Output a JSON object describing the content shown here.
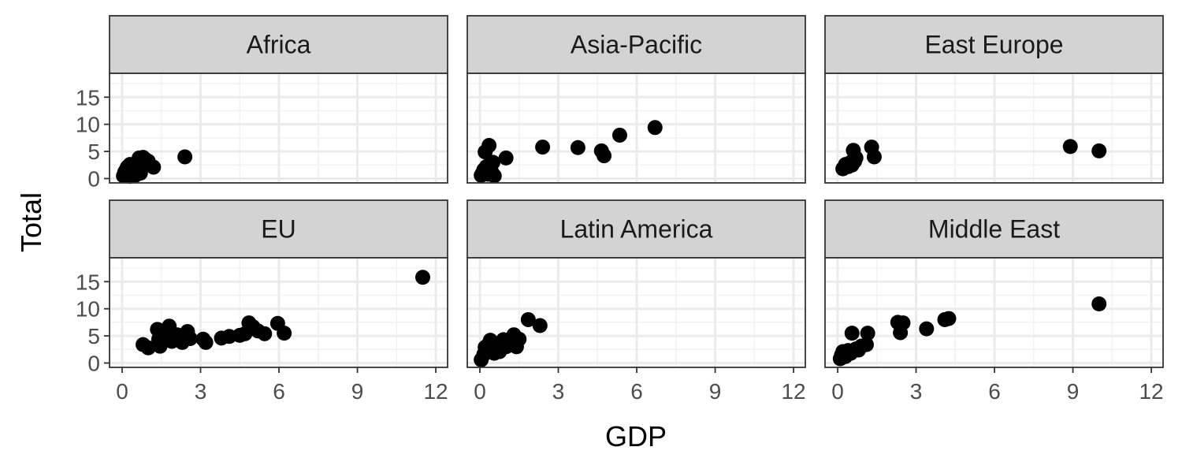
{
  "chart_data": {
    "type": "scatter",
    "xlabel": "GDP",
    "ylabel": "Total",
    "xlim": [
      0,
      12
    ],
    "ylim": [
      0,
      15
    ],
    "x_ticks": [
      0,
      3,
      6,
      9,
      12
    ],
    "y_ticks": [
      0,
      5,
      10,
      15
    ],
    "grid": true,
    "point_color": "#000000",
    "strip_color": "#d3d3d3",
    "facets": [
      {
        "name": "Africa",
        "points": [
          {
            "x": 0.05,
            "y": 0.5
          },
          {
            "x": 0.1,
            "y": 1.2
          },
          {
            "x": 0.12,
            "y": 0.8
          },
          {
            "x": 0.15,
            "y": 1.6
          },
          {
            "x": 0.2,
            "y": 2.1
          },
          {
            "x": 0.25,
            "y": 0.6
          },
          {
            "x": 0.3,
            "y": 2.6
          },
          {
            "x": 0.35,
            "y": 1.3
          },
          {
            "x": 0.4,
            "y": 0.9
          },
          {
            "x": 0.45,
            "y": 2.0
          },
          {
            "x": 0.5,
            "y": 1.6
          },
          {
            "x": 0.55,
            "y": 2.3
          },
          {
            "x": 0.6,
            "y": 3.2
          },
          {
            "x": 0.65,
            "y": 3.8
          },
          {
            "x": 0.7,
            "y": 1.0
          },
          {
            "x": 0.75,
            "y": 2.8
          },
          {
            "x": 0.8,
            "y": 3.9
          },
          {
            "x": 0.9,
            "y": 3.5
          },
          {
            "x": 1.0,
            "y": 3.2
          },
          {
            "x": 1.2,
            "y": 2.1
          },
          {
            "x": 2.4,
            "y": 4.0
          },
          {
            "x": 0.3,
            "y": 0.4
          },
          {
            "x": 0.5,
            "y": 0.6
          }
        ]
      },
      {
        "name": "Asia-Pacific",
        "points": [
          {
            "x": 0.05,
            "y": 0.6
          },
          {
            "x": 0.1,
            "y": 1.0
          },
          {
            "x": 0.15,
            "y": 1.6
          },
          {
            "x": 0.2,
            "y": 4.9
          },
          {
            "x": 0.25,
            "y": 2.2
          },
          {
            "x": 0.3,
            "y": 0.8
          },
          {
            "x": 0.35,
            "y": 6.1
          },
          {
            "x": 0.4,
            "y": 2.6
          },
          {
            "x": 0.45,
            "y": 1.2
          },
          {
            "x": 0.5,
            "y": 3.0
          },
          {
            "x": 0.55,
            "y": 0.5
          },
          {
            "x": 1.0,
            "y": 3.8
          },
          {
            "x": 2.4,
            "y": 5.8
          },
          {
            "x": 3.75,
            "y": 5.7
          },
          {
            "x": 4.65,
            "y": 5.1
          },
          {
            "x": 4.75,
            "y": 4.2
          },
          {
            "x": 5.35,
            "y": 8.0
          },
          {
            "x": 6.7,
            "y": 9.4
          }
        ]
      },
      {
        "name": "East Europe",
        "points": [
          {
            "x": 0.2,
            "y": 1.8
          },
          {
            "x": 0.3,
            "y": 2.6
          },
          {
            "x": 0.4,
            "y": 2.2
          },
          {
            "x": 0.5,
            "y": 3.0
          },
          {
            "x": 0.55,
            "y": 2.5
          },
          {
            "x": 0.6,
            "y": 5.2
          },
          {
            "x": 0.65,
            "y": 3.2
          },
          {
            "x": 0.7,
            "y": 3.8
          },
          {
            "x": 1.3,
            "y": 5.8
          },
          {
            "x": 1.4,
            "y": 4.0
          },
          {
            "x": 8.9,
            "y": 5.9
          },
          {
            "x": 10.0,
            "y": 5.1
          }
        ]
      },
      {
        "name": "EU",
        "points": [
          {
            "x": 0.8,
            "y": 3.4
          },
          {
            "x": 1.0,
            "y": 2.8
          },
          {
            "x": 1.35,
            "y": 6.2
          },
          {
            "x": 1.4,
            "y": 4.4
          },
          {
            "x": 1.45,
            "y": 3.1
          },
          {
            "x": 1.7,
            "y": 5.1
          },
          {
            "x": 1.8,
            "y": 6.8
          },
          {
            "x": 1.9,
            "y": 4.0
          },
          {
            "x": 2.1,
            "y": 5.2
          },
          {
            "x": 2.3,
            "y": 3.8
          },
          {
            "x": 2.4,
            "y": 5.0
          },
          {
            "x": 2.5,
            "y": 5.8
          },
          {
            "x": 2.6,
            "y": 4.5
          },
          {
            "x": 3.1,
            "y": 4.4
          },
          {
            "x": 3.2,
            "y": 3.8
          },
          {
            "x": 3.8,
            "y": 4.6
          },
          {
            "x": 4.1,
            "y": 4.9
          },
          {
            "x": 4.5,
            "y": 5.1
          },
          {
            "x": 4.7,
            "y": 5.4
          },
          {
            "x": 4.85,
            "y": 7.4
          },
          {
            "x": 5.0,
            "y": 6.7
          },
          {
            "x": 5.2,
            "y": 5.9
          },
          {
            "x": 5.45,
            "y": 5.4
          },
          {
            "x": 5.95,
            "y": 7.3
          },
          {
            "x": 6.2,
            "y": 5.5
          },
          {
            "x": 11.5,
            "y": 15.8
          }
        ]
      },
      {
        "name": "Latin America",
        "points": [
          {
            "x": 0.05,
            "y": 0.6
          },
          {
            "x": 0.15,
            "y": 1.6
          },
          {
            "x": 0.2,
            "y": 2.9
          },
          {
            "x": 0.3,
            "y": 2.2
          },
          {
            "x": 0.35,
            "y": 3.6
          },
          {
            "x": 0.4,
            "y": 4.2
          },
          {
            "x": 0.5,
            "y": 2.4
          },
          {
            "x": 0.55,
            "y": 1.8
          },
          {
            "x": 0.6,
            "y": 3.2
          },
          {
            "x": 0.7,
            "y": 2.8
          },
          {
            "x": 0.75,
            "y": 2.1
          },
          {
            "x": 0.8,
            "y": 3.6
          },
          {
            "x": 0.9,
            "y": 4.3
          },
          {
            "x": 1.0,
            "y": 3.0
          },
          {
            "x": 1.1,
            "y": 3.9
          },
          {
            "x": 1.2,
            "y": 4.2
          },
          {
            "x": 1.3,
            "y": 5.2
          },
          {
            "x": 1.4,
            "y": 3.0
          },
          {
            "x": 1.5,
            "y": 4.4
          },
          {
            "x": 1.85,
            "y": 8.0
          },
          {
            "x": 2.3,
            "y": 6.9
          }
        ]
      },
      {
        "name": "Middle East",
        "points": [
          {
            "x": 0.1,
            "y": 0.8
          },
          {
            "x": 0.15,
            "y": 1.5
          },
          {
            "x": 0.2,
            "y": 2.1
          },
          {
            "x": 0.3,
            "y": 1.2
          },
          {
            "x": 0.4,
            "y": 2.3
          },
          {
            "x": 0.5,
            "y": 1.8
          },
          {
            "x": 0.55,
            "y": 5.5
          },
          {
            "x": 0.7,
            "y": 2.6
          },
          {
            "x": 0.8,
            "y": 2.4
          },
          {
            "x": 0.9,
            "y": 3.1
          },
          {
            "x": 1.1,
            "y": 3.4
          },
          {
            "x": 1.15,
            "y": 5.5
          },
          {
            "x": 2.3,
            "y": 7.5
          },
          {
            "x": 2.4,
            "y": 5.6
          },
          {
            "x": 2.5,
            "y": 7.4
          },
          {
            "x": 3.4,
            "y": 6.3
          },
          {
            "x": 4.1,
            "y": 8.0
          },
          {
            "x": 4.25,
            "y": 8.2
          },
          {
            "x": 10.0,
            "y": 10.9
          }
        ]
      }
    ]
  }
}
